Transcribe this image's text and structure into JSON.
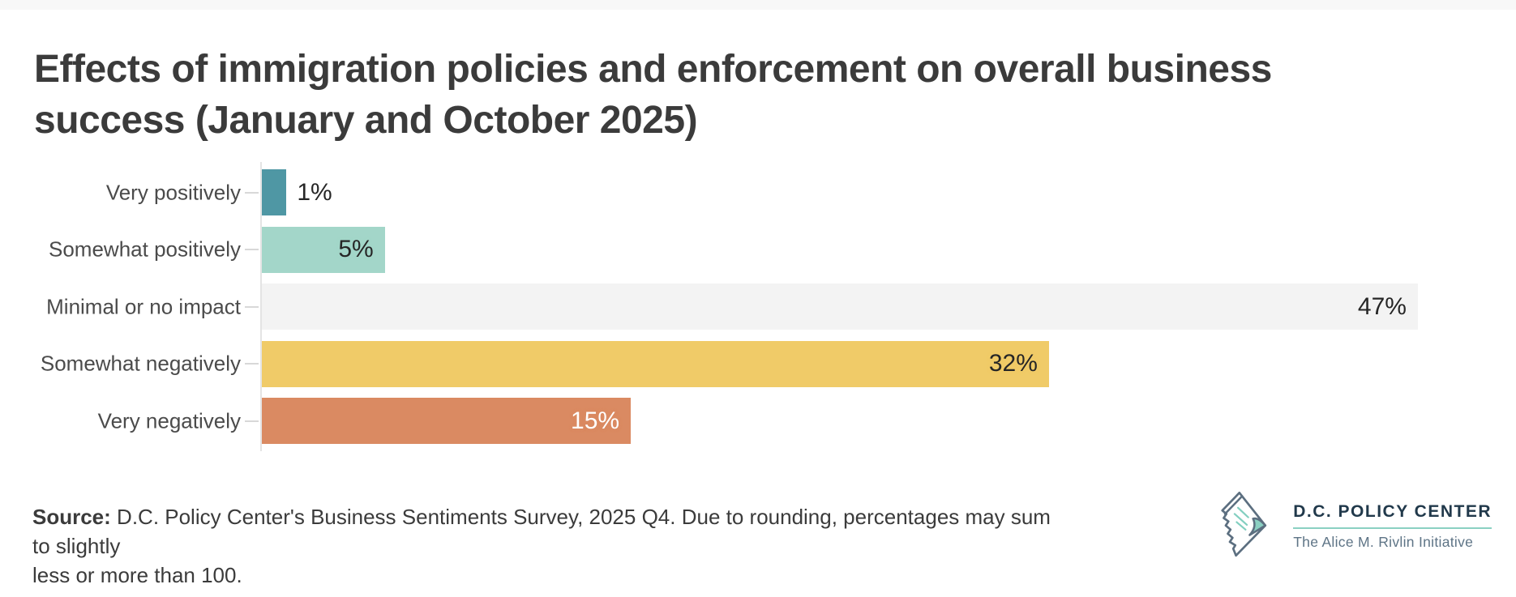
{
  "header": {
    "title_lines": [
      "Effects of immigration policies and enforcement on overall business",
      "success (January and October 2025)"
    ]
  },
  "chart_data": {
    "type": "bar",
    "orientation": "horizontal",
    "title": "Effects of immigration policies and enforcement on overall business success (January and October 2025)",
    "categories": [
      "Very positively",
      "Somewhat positively",
      "Minimal or no impact",
      "Somewhat negatively",
      "Very negatively"
    ],
    "values": [
      1,
      5,
      47,
      32,
      15
    ],
    "value_labels": [
      "1%",
      "5%",
      "47%",
      "32%",
      "15%"
    ],
    "bar_colors": [
      "#4F97A4",
      "#A3D6C9",
      "#F3F3F3",
      "#F0CB68",
      "#DA8A62"
    ],
    "label_styles": [
      "outside-dark",
      "inside-dark",
      "inside-dark",
      "inside-dark",
      "inside-light"
    ],
    "xlabel": "",
    "ylabel": "",
    "xlim": [
      0,
      51
    ],
    "grid": false,
    "legend": false,
    "axis_color": "#E4E4E4",
    "tick_color": "#D8D8D8"
  },
  "footer": {
    "source_label": "Source:",
    "source_line1": " D.C. Policy Center's Business Sentiments Survey, 2025 Q4. Due to rounding, percentages may sum to slightly",
    "source_line2": "less or more than 100."
  },
  "logo": {
    "name": "D.C. POLICY CENTER",
    "tagline": "The Alice M. Rivlin Initiative",
    "brand_navy": "#21394B",
    "brand_teal": "#8BD0C2",
    "icon": "dc-map-folded-paper-icon"
  }
}
